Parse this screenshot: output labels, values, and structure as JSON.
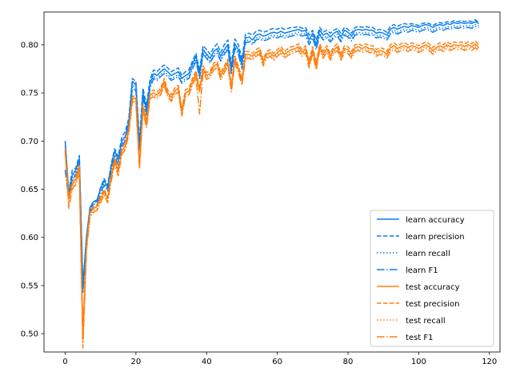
{
  "chart_data": {
    "type": "line",
    "title": "",
    "xlabel": "",
    "ylabel": "",
    "xlim": [
      -6,
      123
    ],
    "ylim": [
      0.481,
      0.834
    ],
    "xticks": [
      0,
      20,
      40,
      60,
      80,
      100,
      120
    ],
    "xtick_labels": [
      "0",
      "20",
      "40",
      "60",
      "80",
      "100",
      "120"
    ],
    "yticks": [
      0.5,
      0.55,
      0.6,
      0.65,
      0.7,
      0.75,
      0.8
    ],
    "ytick_labels": [
      "0.50",
      "0.55",
      "0.60",
      "0.65",
      "0.70",
      "0.75",
      "0.80"
    ],
    "grid": false,
    "legend_position": "lower right",
    "colors": {
      "learn": "#0a7ff0",
      "test": "#ff7f0e"
    },
    "x": [
      0,
      1,
      2,
      3,
      4,
      5,
      6,
      7,
      8,
      9,
      10,
      11,
      12,
      13,
      14,
      15,
      16,
      17,
      18,
      19,
      20,
      21,
      22,
      23,
      24,
      25,
      26,
      27,
      28,
      29,
      30,
      31,
      32,
      33,
      34,
      35,
      36,
      37,
      38,
      39,
      40,
      41,
      42,
      43,
      44,
      45,
      46,
      47,
      48,
      49,
      50,
      51,
      52,
      53,
      54,
      55,
      56,
      57,
      58,
      59,
      60,
      61,
      62,
      63,
      64,
      65,
      66,
      67,
      68,
      69,
      70,
      71,
      72,
      73,
      74,
      75,
      76,
      77,
      78,
      79,
      80,
      81,
      82,
      83,
      84,
      85,
      86,
      87,
      88,
      89,
      90,
      91,
      92,
      93,
      94,
      95,
      96,
      97,
      98,
      99,
      100,
      101,
      102,
      103,
      104,
      105,
      106,
      107,
      108,
      109,
      110,
      111,
      112,
      113,
      114,
      115,
      116,
      117
    ],
    "series": [
      {
        "name": "learn accuracy",
        "group": "learn",
        "style": "solid",
        "values": [
          0.7,
          0.645,
          0.665,
          0.67,
          0.682,
          0.55,
          0.6,
          0.631,
          0.637,
          0.639,
          0.65,
          0.659,
          0.652,
          0.673,
          0.69,
          0.68,
          0.7,
          0.705,
          0.72,
          0.762,
          0.758,
          0.695,
          0.75,
          0.732,
          0.76,
          0.77,
          0.768,
          0.772,
          0.775,
          0.772,
          0.768,
          0.77,
          0.772,
          0.765,
          0.768,
          0.77,
          0.78,
          0.788,
          0.77,
          0.795,
          0.79,
          0.786,
          0.793,
          0.796,
          0.788,
          0.795,
          0.8,
          0.775,
          0.801,
          0.795,
          0.78,
          0.807,
          0.808,
          0.805,
          0.81,
          0.811,
          0.809,
          0.81,
          0.812,
          0.813,
          0.812,
          0.814,
          0.812,
          0.813,
          0.814,
          0.815,
          0.816,
          0.814,
          0.815,
          0.805,
          0.812,
          0.8,
          0.815,
          0.81,
          0.812,
          0.808,
          0.812,
          0.814,
          0.808,
          0.815,
          0.813,
          0.809,
          0.815,
          0.816,
          0.815,
          0.816,
          0.815,
          0.815,
          0.812,
          0.813,
          0.812,
          0.81,
          0.816,
          0.818,
          0.816,
          0.818,
          0.819,
          0.818,
          0.82,
          0.819,
          0.818,
          0.82,
          0.821,
          0.82,
          0.818,
          0.82,
          0.821,
          0.82,
          0.822,
          0.821,
          0.823,
          0.822,
          0.823,
          0.822,
          0.823,
          0.822,
          0.824,
          0.822
        ]
      },
      {
        "name": "learn precision",
        "group": "learn",
        "style": "dashed",
        "values": [
          0.7,
          0.647,
          0.67,
          0.672,
          0.685,
          0.548,
          0.598,
          0.629,
          0.635,
          0.638,
          0.652,
          0.661,
          0.654,
          0.676,
          0.692,
          0.684,
          0.704,
          0.71,
          0.724,
          0.765,
          0.762,
          0.7,
          0.755,
          0.737,
          0.764,
          0.774,
          0.772,
          0.776,
          0.779,
          0.776,
          0.772,
          0.774,
          0.776,
          0.768,
          0.772,
          0.774,
          0.783,
          0.791,
          0.773,
          0.799,
          0.795,
          0.79,
          0.797,
          0.801,
          0.792,
          0.8,
          0.805,
          0.78,
          0.806,
          0.8,
          0.785,
          0.811,
          0.812,
          0.81,
          0.814,
          0.815,
          0.813,
          0.814,
          0.816,
          0.817,
          0.816,
          0.818,
          0.816,
          0.817,
          0.818,
          0.818,
          0.819,
          0.817,
          0.818,
          0.81,
          0.815,
          0.805,
          0.818,
          0.813,
          0.815,
          0.812,
          0.815,
          0.817,
          0.812,
          0.818,
          0.816,
          0.812,
          0.818,
          0.819,
          0.818,
          0.819,
          0.818,
          0.818,
          0.815,
          0.816,
          0.815,
          0.813,
          0.819,
          0.821,
          0.819,
          0.821,
          0.822,
          0.821,
          0.822,
          0.821,
          0.82,
          0.822,
          0.823,
          0.822,
          0.82,
          0.822,
          0.823,
          0.822,
          0.824,
          0.823,
          0.825,
          0.824,
          0.825,
          0.824,
          0.825,
          0.824,
          0.826,
          0.823
        ]
      },
      {
        "name": "learn recall",
        "group": "learn",
        "style": "dotted",
        "values": [
          0.695,
          0.642,
          0.662,
          0.668,
          0.68,
          0.545,
          0.598,
          0.628,
          0.634,
          0.636,
          0.648,
          0.656,
          0.65,
          0.67,
          0.686,
          0.677,
          0.697,
          0.702,
          0.717,
          0.758,
          0.755,
          0.692,
          0.747,
          0.729,
          0.757,
          0.767,
          0.765,
          0.769,
          0.772,
          0.769,
          0.765,
          0.767,
          0.769,
          0.762,
          0.765,
          0.767,
          0.777,
          0.785,
          0.767,
          0.792,
          0.788,
          0.783,
          0.79,
          0.793,
          0.785,
          0.792,
          0.797,
          0.772,
          0.798,
          0.792,
          0.777,
          0.804,
          0.805,
          0.802,
          0.807,
          0.808,
          0.806,
          0.807,
          0.809,
          0.81,
          0.809,
          0.811,
          0.809,
          0.81,
          0.811,
          0.812,
          0.813,
          0.811,
          0.812,
          0.802,
          0.809,
          0.797,
          0.812,
          0.807,
          0.809,
          0.805,
          0.809,
          0.811,
          0.805,
          0.812,
          0.81,
          0.806,
          0.812,
          0.813,
          0.812,
          0.813,
          0.812,
          0.812,
          0.809,
          0.81,
          0.809,
          0.807,
          0.813,
          0.815,
          0.813,
          0.815,
          0.816,
          0.815,
          0.817,
          0.816,
          0.815,
          0.817,
          0.818,
          0.817,
          0.815,
          0.817,
          0.818,
          0.817,
          0.819,
          0.818,
          0.82,
          0.819,
          0.82,
          0.819,
          0.82,
          0.819,
          0.821,
          0.82
        ]
      },
      {
        "name": "learn F1",
        "group": "learn",
        "style": "dashdot",
        "values": [
          0.67,
          0.64,
          0.66,
          0.665,
          0.678,
          0.542,
          0.596,
          0.626,
          0.632,
          0.634,
          0.646,
          0.654,
          0.648,
          0.668,
          0.684,
          0.675,
          0.695,
          0.7,
          0.715,
          0.756,
          0.752,
          0.69,
          0.745,
          0.727,
          0.755,
          0.765,
          0.763,
          0.767,
          0.77,
          0.767,
          0.763,
          0.765,
          0.767,
          0.76,
          0.763,
          0.765,
          0.775,
          0.783,
          0.765,
          0.79,
          0.786,
          0.781,
          0.788,
          0.791,
          0.783,
          0.79,
          0.795,
          0.77,
          0.796,
          0.79,
          0.775,
          0.802,
          0.803,
          0.8,
          0.805,
          0.806,
          0.804,
          0.805,
          0.807,
          0.808,
          0.807,
          0.809,
          0.807,
          0.808,
          0.809,
          0.81,
          0.811,
          0.809,
          0.81,
          0.8,
          0.807,
          0.795,
          0.81,
          0.805,
          0.807,
          0.803,
          0.807,
          0.809,
          0.803,
          0.81,
          0.808,
          0.804,
          0.81,
          0.811,
          0.81,
          0.811,
          0.81,
          0.81,
          0.807,
          0.808,
          0.807,
          0.805,
          0.811,
          0.813,
          0.811,
          0.813,
          0.814,
          0.813,
          0.815,
          0.814,
          0.813,
          0.815,
          0.816,
          0.815,
          0.813,
          0.815,
          0.816,
          0.815,
          0.817,
          0.816,
          0.818,
          0.817,
          0.818,
          0.817,
          0.818,
          0.817,
          0.819,
          0.818
        ]
      },
      {
        "name": "test accuracy",
        "group": "test",
        "style": "solid",
        "values": [
          0.69,
          0.64,
          0.655,
          0.66,
          0.672,
          0.5,
          0.59,
          0.625,
          0.63,
          0.632,
          0.64,
          0.648,
          0.64,
          0.662,
          0.68,
          0.668,
          0.69,
          0.695,
          0.712,
          0.745,
          0.744,
          0.675,
          0.735,
          0.718,
          0.748,
          0.75,
          0.748,
          0.752,
          0.762,
          0.75,
          0.745,
          0.752,
          0.755,
          0.73,
          0.75,
          0.752,
          0.762,
          0.77,
          0.752,
          0.775,
          0.768,
          0.77,
          0.778,
          0.78,
          0.768,
          0.775,
          0.782,
          0.755,
          0.785,
          0.775,
          0.762,
          0.79,
          0.79,
          0.788,
          0.792,
          0.794,
          0.782,
          0.79,
          0.792,
          0.788,
          0.792,
          0.795,
          0.79,
          0.793,
          0.795,
          0.796,
          0.798,
          0.792,
          0.796,
          0.78,
          0.795,
          0.778,
          0.798,
          0.79,
          0.796,
          0.788,
          0.795,
          0.798,
          0.788,
          0.796,
          0.795,
          0.79,
          0.797,
          0.798,
          0.796,
          0.798,
          0.796,
          0.796,
          0.792,
          0.794,
          0.793,
          0.79,
          0.797,
          0.799,
          0.796,
          0.798,
          0.799,
          0.797,
          0.799,
          0.798,
          0.796,
          0.798,
          0.8,
          0.798,
          0.794,
          0.797,
          0.799,
          0.797,
          0.8,
          0.798,
          0.8,
          0.799,
          0.8,
          0.798,
          0.8,
          0.798,
          0.801,
          0.797
        ]
      },
      {
        "name": "test precision",
        "group": "test",
        "style": "dashed",
        "values": [
          0.692,
          0.642,
          0.658,
          0.663,
          0.675,
          0.495,
          0.592,
          0.627,
          0.632,
          0.634,
          0.643,
          0.65,
          0.642,
          0.665,
          0.683,
          0.671,
          0.693,
          0.698,
          0.715,
          0.747,
          0.746,
          0.678,
          0.738,
          0.721,
          0.751,
          0.753,
          0.751,
          0.755,
          0.765,
          0.753,
          0.748,
          0.755,
          0.758,
          0.733,
          0.753,
          0.755,
          0.765,
          0.773,
          0.755,
          0.778,
          0.771,
          0.773,
          0.781,
          0.783,
          0.771,
          0.778,
          0.785,
          0.758,
          0.788,
          0.778,
          0.765,
          0.793,
          0.793,
          0.791,
          0.795,
          0.797,
          0.785,
          0.793,
          0.795,
          0.791,
          0.795,
          0.798,
          0.793,
          0.796,
          0.798,
          0.799,
          0.801,
          0.795,
          0.799,
          0.783,
          0.798,
          0.781,
          0.801,
          0.793,
          0.799,
          0.791,
          0.798,
          0.801,
          0.791,
          0.799,
          0.798,
          0.793,
          0.8,
          0.801,
          0.799,
          0.801,
          0.799,
          0.799,
          0.795,
          0.797,
          0.796,
          0.793,
          0.8,
          0.802,
          0.799,
          0.801,
          0.802,
          0.8,
          0.802,
          0.801,
          0.799,
          0.801,
          0.803,
          0.801,
          0.797,
          0.8,
          0.802,
          0.8,
          0.803,
          0.801,
          0.803,
          0.802,
          0.803,
          0.801,
          0.803,
          0.801,
          0.804,
          0.8
        ]
      },
      {
        "name": "test recall",
        "group": "test",
        "style": "dotted",
        "values": [
          0.688,
          0.638,
          0.652,
          0.657,
          0.669,
          0.49,
          0.588,
          0.623,
          0.628,
          0.63,
          0.638,
          0.646,
          0.638,
          0.66,
          0.678,
          0.666,
          0.688,
          0.693,
          0.71,
          0.743,
          0.742,
          0.673,
          0.733,
          0.716,
          0.746,
          0.748,
          0.746,
          0.75,
          0.76,
          0.748,
          0.743,
          0.75,
          0.753,
          0.728,
          0.748,
          0.75,
          0.76,
          0.768,
          0.75,
          0.773,
          0.766,
          0.768,
          0.776,
          0.778,
          0.766,
          0.773,
          0.78,
          0.753,
          0.783,
          0.773,
          0.76,
          0.788,
          0.788,
          0.786,
          0.79,
          0.792,
          0.78,
          0.788,
          0.79,
          0.786,
          0.79,
          0.793,
          0.788,
          0.791,
          0.793,
          0.794,
          0.796,
          0.79,
          0.794,
          0.778,
          0.793,
          0.776,
          0.796,
          0.788,
          0.794,
          0.786,
          0.793,
          0.796,
          0.786,
          0.794,
          0.793,
          0.788,
          0.795,
          0.796,
          0.794,
          0.796,
          0.794,
          0.794,
          0.79,
          0.792,
          0.791,
          0.788,
          0.795,
          0.797,
          0.794,
          0.796,
          0.797,
          0.795,
          0.797,
          0.796,
          0.794,
          0.796,
          0.798,
          0.796,
          0.792,
          0.795,
          0.797,
          0.795,
          0.798,
          0.796,
          0.798,
          0.797,
          0.798,
          0.796,
          0.798,
          0.796,
          0.799,
          0.795
        ]
      },
      {
        "name": "test F1",
        "group": "test",
        "style": "dashdot",
        "values": [
          0.69,
          0.63,
          0.65,
          0.655,
          0.667,
          0.485,
          0.586,
          0.621,
          0.626,
          0.628,
          0.636,
          0.644,
          0.636,
          0.658,
          0.676,
          0.664,
          0.686,
          0.691,
          0.708,
          0.741,
          0.74,
          0.671,
          0.731,
          0.714,
          0.744,
          0.746,
          0.744,
          0.748,
          0.758,
          0.746,
          0.741,
          0.748,
          0.751,
          0.726,
          0.746,
          0.748,
          0.758,
          0.766,
          0.728,
          0.771,
          0.764,
          0.766,
          0.774,
          0.776,
          0.764,
          0.771,
          0.778,
          0.751,
          0.781,
          0.771,
          0.758,
          0.786,
          0.786,
          0.784,
          0.788,
          0.79,
          0.778,
          0.786,
          0.788,
          0.784,
          0.788,
          0.791,
          0.786,
          0.789,
          0.791,
          0.792,
          0.794,
          0.788,
          0.792,
          0.776,
          0.791,
          0.774,
          0.794,
          0.786,
          0.792,
          0.784,
          0.791,
          0.794,
          0.784,
          0.792,
          0.791,
          0.786,
          0.793,
          0.794,
          0.792,
          0.794,
          0.792,
          0.792,
          0.788,
          0.79,
          0.789,
          0.786,
          0.793,
          0.795,
          0.792,
          0.794,
          0.795,
          0.793,
          0.795,
          0.794,
          0.792,
          0.794,
          0.796,
          0.794,
          0.79,
          0.793,
          0.795,
          0.793,
          0.796,
          0.794,
          0.796,
          0.795,
          0.796,
          0.794,
          0.796,
          0.794,
          0.797,
          0.793
        ]
      }
    ]
  }
}
